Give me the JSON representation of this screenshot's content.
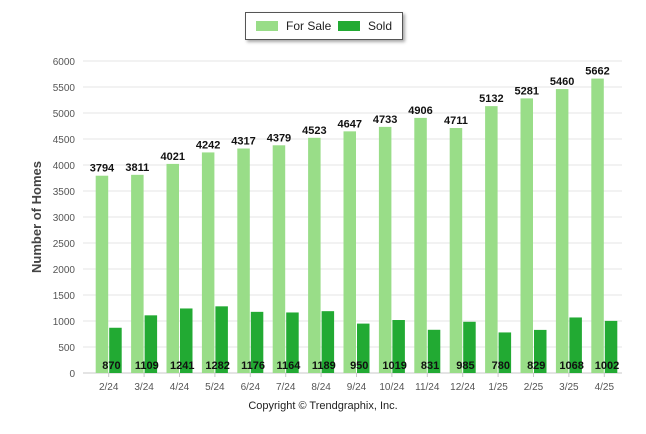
{
  "chart_data": {
    "type": "bar",
    "title": "",
    "xlabel": "",
    "ylabel": "Number of Homes",
    "ylim": [
      0,
      6000
    ],
    "yticks": [
      0,
      500,
      1000,
      1500,
      2000,
      2500,
      3000,
      3500,
      4000,
      4500,
      5000,
      5500,
      6000
    ],
    "grid": true,
    "legend_position": "top-center",
    "categories": [
      "2/24",
      "3/24",
      "4/24",
      "5/24",
      "6/24",
      "7/24",
      "8/24",
      "9/24",
      "10/24",
      "11/24",
      "12/24",
      "1/25",
      "2/25",
      "3/25",
      "4/25"
    ],
    "series": [
      {
        "name": "For Sale",
        "color": "#99dd88",
        "values": [
          3794,
          3811,
          4021,
          4242,
          4317,
          4379,
          4523,
          4647,
          4733,
          4906,
          4711,
          5132,
          5281,
          5460,
          5662
        ]
      },
      {
        "name": "Sold",
        "color": "#22aa33",
        "values": [
          870,
          1109,
          1241,
          1282,
          1176,
          1164,
          1189,
          950,
          1019,
          831,
          985,
          780,
          829,
          1068,
          1002
        ]
      }
    ]
  },
  "legend": {
    "items": [
      {
        "label": "For Sale",
        "color": "#99dd88"
      },
      {
        "label": "Sold",
        "color": "#22aa33"
      }
    ]
  },
  "footer": {
    "copyright": "Copyright © Trendgraphix, Inc."
  }
}
